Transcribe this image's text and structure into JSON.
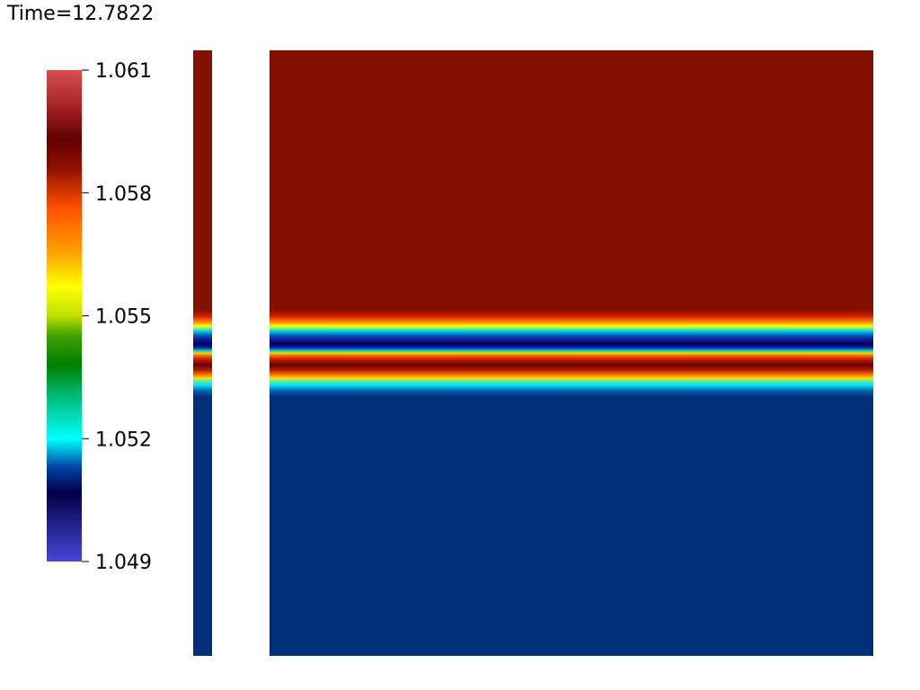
{
  "header": {
    "title": "Time=12.7822"
  },
  "colorbar": {
    "labels": [
      "1.061",
      "1.058",
      "1.055",
      "1.052",
      "1.049"
    ]
  }
}
